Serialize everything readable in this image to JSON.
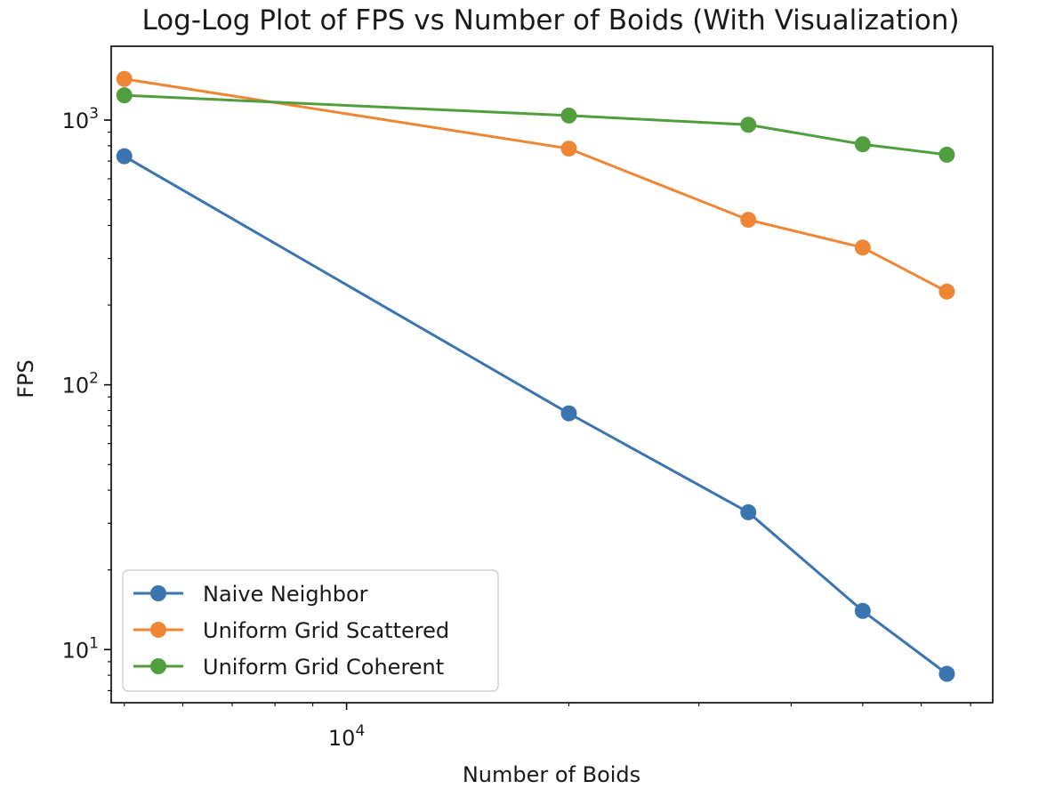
{
  "chart_data": {
    "type": "line",
    "title": "Log-Log Plot of FPS vs Number of Boids (With Visualization)",
    "xlabel": "Number of Boids",
    "ylabel": "FPS",
    "xscale": "log",
    "yscale": "log",
    "xlim": [
      4800,
      75000
    ],
    "ylim": [
      6.3,
      1900
    ],
    "grid": false,
    "legend_position": "lower-left",
    "x": [
      5000,
      20000,
      35000,
      50000,
      65000
    ],
    "series": [
      {
        "name": "Naive Neighbor",
        "color": "#3a75b0",
        "marker": "circle",
        "values": [
          730,
          78,
          33,
          14,
          8.1
        ]
      },
      {
        "name": "Uniform Grid Scattered",
        "color": "#ef8636",
        "marker": "circle",
        "values": [
          1430,
          780,
          420,
          330,
          225
        ]
      },
      {
        "name": "Uniform Grid Coherent",
        "color": "#519e3e",
        "marker": "circle",
        "values": [
          1240,
          1040,
          960,
          810,
          740
        ]
      }
    ],
    "x_ticks": [
      {
        "value": 10000,
        "base": "10",
        "exp": "4"
      }
    ],
    "x_minor_ticks": [
      5000,
      6000,
      7000,
      8000,
      9000,
      20000,
      30000,
      40000,
      50000,
      60000,
      70000
    ],
    "y_ticks": [
      {
        "value": 10,
        "base": "10",
        "exp": "1"
      },
      {
        "value": 100,
        "base": "10",
        "exp": "2"
      },
      {
        "value": 1000,
        "base": "10",
        "exp": "3"
      }
    ],
    "y_minor_ticks": [
      7,
      8,
      9,
      20,
      30,
      40,
      50,
      60,
      70,
      80,
      90,
      200,
      300,
      400,
      500,
      600,
      700,
      800,
      900
    ]
  }
}
